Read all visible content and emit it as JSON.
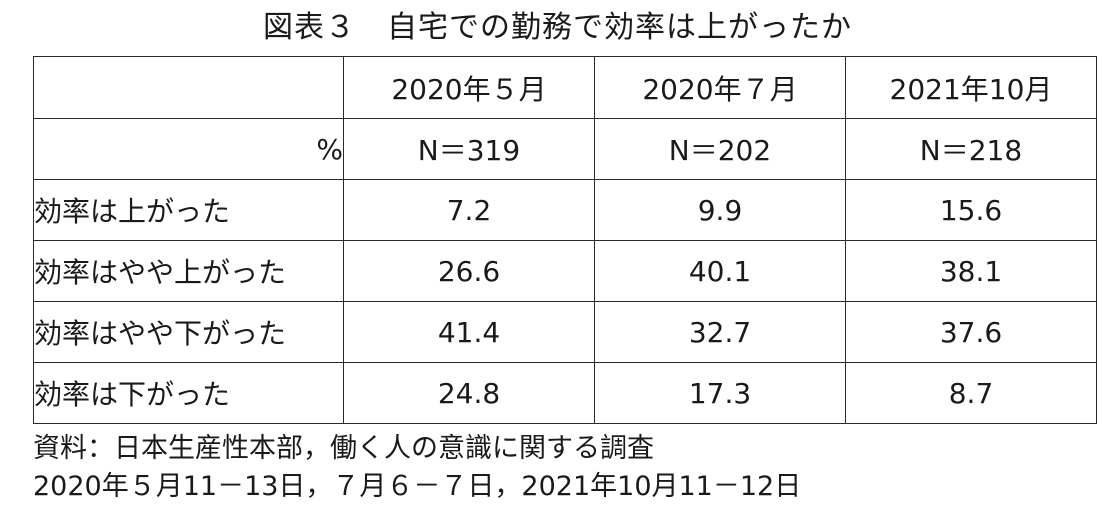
{
  "title": "図表３　自宅での勤務で効率は上がったか",
  "table": {
    "header": [
      "",
      "2020年５月",
      "2020年７月",
      "2021年10月"
    ],
    "n_row": {
      "label": "%",
      "values": [
        "N＝319",
        "N＝202",
        "N＝218"
      ]
    },
    "rows": [
      {
        "label": "効率は上がった",
        "values": [
          "7.2",
          "9.9",
          "15.6"
        ]
      },
      {
        "label": "効率はやや上がった",
        "values": [
          "26.6",
          "40.1",
          "38.1"
        ]
      },
      {
        "label": "効率はやや下がった",
        "values": [
          "41.4",
          "32.7",
          "37.6"
        ]
      },
      {
        "label": "効率は下がった",
        "values": [
          "24.8",
          "17.3",
          "8.7"
        ]
      }
    ]
  },
  "footer": {
    "line1": "資料：日本生産性本部，働く人の意識に関する調査",
    "line2": "2020年５月11－13日，７月６－７日，2021年10月11－12日"
  }
}
